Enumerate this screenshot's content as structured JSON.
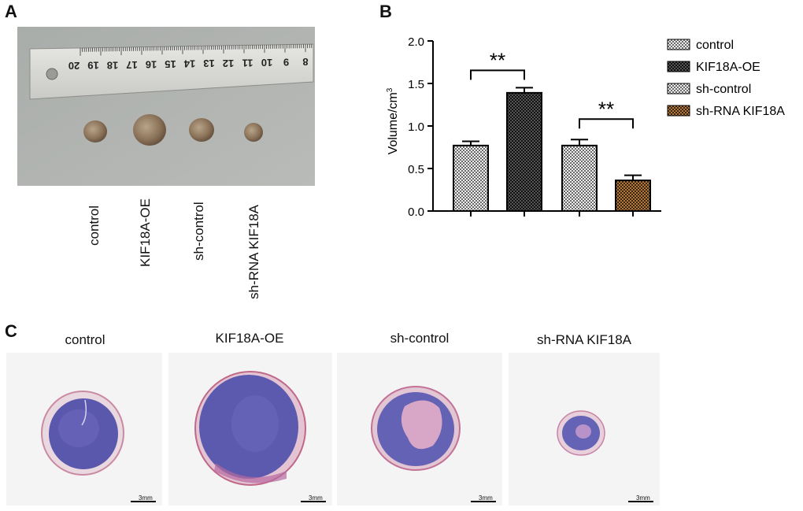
{
  "panels": {
    "a": "A",
    "b": "B",
    "c": "C"
  },
  "ruler": {
    "numbers": [
      "20",
      "19",
      "18",
      "17",
      "16",
      "15",
      "14",
      "13",
      "12",
      "11",
      "10",
      "9",
      "8"
    ]
  },
  "photo": {
    "labels": [
      "control",
      "KIF18A-OE",
      "sh-control",
      "sh-RNA KIF18A"
    ]
  },
  "chart_data": {
    "type": "bar",
    "categories": [
      "control",
      "KIF18A-OE",
      "sh-control",
      "sh-RNA KIF18A"
    ],
    "values": [
      0.77,
      1.39,
      0.77,
      0.36
    ],
    "errors": [
      0.05,
      0.06,
      0.07,
      0.06
    ],
    "ylabel": "Volume/cm",
    "ylabel_sup": "3",
    "ylim": [
      0.0,
      2.0
    ],
    "yticks": [
      "0.0",
      "0.5",
      "1.0",
      "1.5",
      "2.0"
    ],
    "legend_position": "right",
    "legend": [
      "control",
      "KIF18A-OE",
      "sh-control",
      "sh-RNA KIF18A"
    ],
    "significance": [
      {
        "pair": [
          0,
          1
        ],
        "label": "**"
      },
      {
        "pair": [
          2,
          3
        ],
        "label": "**"
      }
    ],
    "colors": [
      "#d8d8d8",
      "#262626",
      "#d8d8d8",
      "#8a5a2c"
    ]
  },
  "histology": {
    "titles": [
      "control",
      "KIF18A-OE",
      "sh-control",
      "sh-RNA KIF18A"
    ],
    "scale_label": "3mm"
  }
}
